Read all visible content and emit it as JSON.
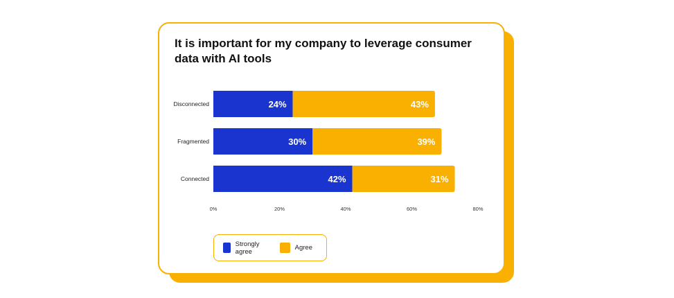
{
  "chart_data": {
    "type": "bar",
    "orientation": "horizontal",
    "stacked": true,
    "title": "It is important for my company to leverage consumer data with AI tools",
    "categories": [
      "Disconnected",
      "Fragmented",
      "Connected"
    ],
    "series": [
      {
        "name": "Strongly agree",
        "values": [
          24,
          30,
          42
        ],
        "color": "#1A35CF",
        "labels": [
          "24%",
          "30%",
          "42%"
        ]
      },
      {
        "name": "Agree",
        "values": [
          43,
          39,
          31
        ],
        "color": "#F9B000",
        "labels": [
          "43%",
          "39%",
          "31%"
        ]
      }
    ],
    "xlim": [
      0,
      80
    ],
    "xticks": [
      0,
      20,
      40,
      60,
      80
    ],
    "xtick_labels": [
      "0%",
      "20%",
      "40%",
      "60%",
      "80%"
    ],
    "legend_position": "bottom-left",
    "grid": false
  },
  "colors": {
    "accent": "#F9B000",
    "primary": "#1A35CF"
  }
}
